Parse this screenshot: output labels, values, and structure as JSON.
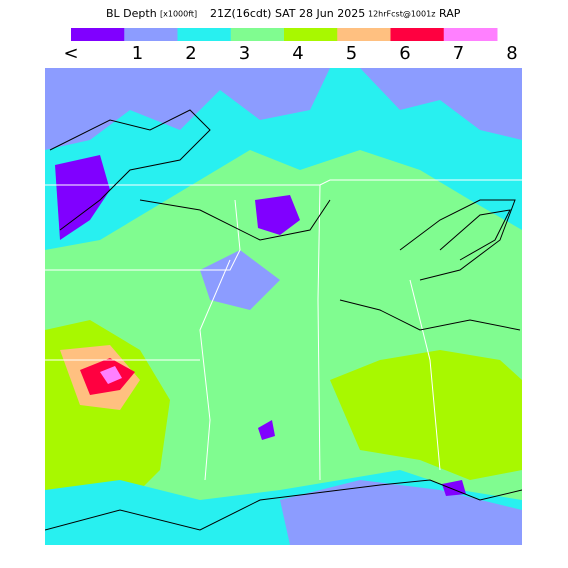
{
  "header": {
    "field": "BL Depth",
    "units": "[x1000ft]",
    "valid": "21Z(16cdt) SAT 28 Jun 2025",
    "forecast": "12hrFcst@1001z",
    "model": "RAP"
  },
  "legend": {
    "labels": [
      "<",
      "1",
      "2",
      "3",
      "4",
      "5",
      "6",
      "7",
      "8"
    ],
    "colors": [
      "#8000ff",
      "#8c9cff",
      "#28f0f0",
      "#80fc90",
      "#a8f800",
      "#ffc080",
      "#ff0040",
      "#ff80ff"
    ]
  }
}
